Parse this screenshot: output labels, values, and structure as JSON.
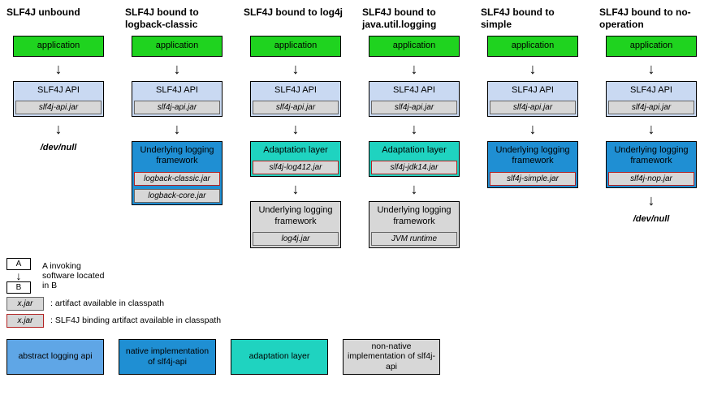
{
  "diagram": {
    "colors": {
      "application": "#1fd31f",
      "api": "#c9d9f2",
      "native": "#1f8fd3",
      "adaptation": "#1fd3c0",
      "nonnative": "#d7d7d7",
      "jar_border": "#666666",
      "binding_border": "#b22222",
      "background": "#ffffff"
    },
    "columns": [
      {
        "title": "SLF4J unbound",
        "app": "application",
        "api_label": "SLF4J API",
        "api_jar": "slf4j-api.jar",
        "terminal": "/dev/null"
      },
      {
        "title": "SLF4J bound to logback-classic",
        "app": "application",
        "api_label": "SLF4J API",
        "api_jar": "slf4j-api.jar",
        "impl": {
          "kind": "native",
          "label": "Underlying logging framework",
          "jars": [
            "logback-classic.jar",
            "logback-core.jar"
          ],
          "binding_index": 0
        }
      },
      {
        "title": "SLF4J bound to log4j",
        "app": "application",
        "api_label": "SLF4J API",
        "api_jar": "slf4j-api.jar",
        "adapter": {
          "label": "Adaptation layer",
          "jar": "slf4j-log412.jar"
        },
        "underlying": {
          "label": "Underlying logging framework",
          "jar": "log4j.jar"
        }
      },
      {
        "title": "SLF4J bound to java.util.logging",
        "app": "application",
        "api_label": "SLF4J API",
        "api_jar": "slf4j-api.jar",
        "adapter": {
          "label": "Adaptation layer",
          "jar": "slf4j-jdk14.jar"
        },
        "underlying": {
          "label": "Underlying logging framework",
          "jar": "JVM runtime"
        }
      },
      {
        "title": "SLF4J bound to simple",
        "app": "application",
        "api_label": "SLF4J API",
        "api_jar": "slf4j-api.jar",
        "impl": {
          "kind": "native",
          "label": "Underlying logging framework",
          "jars": [
            "slf4j-simple.jar"
          ],
          "binding_index": 0
        }
      },
      {
        "title": "SLF4J bound to no-operation",
        "app": "application",
        "api_label": "SLF4J API",
        "api_jar": "slf4j-api.jar",
        "impl": {
          "kind": "native",
          "label": "Underlying logging framework",
          "jars": [
            "slf4j-nop.jar"
          ],
          "binding_index": 0
        },
        "terminal": "/dev/null"
      }
    ]
  },
  "legend": {
    "ab": {
      "a": "A",
      "b": "B",
      "text": "A invoking\nsoftware located\nin B"
    },
    "jar_text": ": artifact available in classpath",
    "binding_text": ": SLF4J binding artifact available in classpath",
    "jar_label": "x.jar",
    "swatches": [
      {
        "cls": "sw-api",
        "text": "abstract logging api"
      },
      {
        "cls": "sw-native",
        "text": "native implementation of slf4j-api"
      },
      {
        "cls": "sw-adapt",
        "text": "adaptation layer"
      },
      {
        "cls": "sw-non",
        "text": "non-native implementation of slf4j-api"
      }
    ]
  }
}
